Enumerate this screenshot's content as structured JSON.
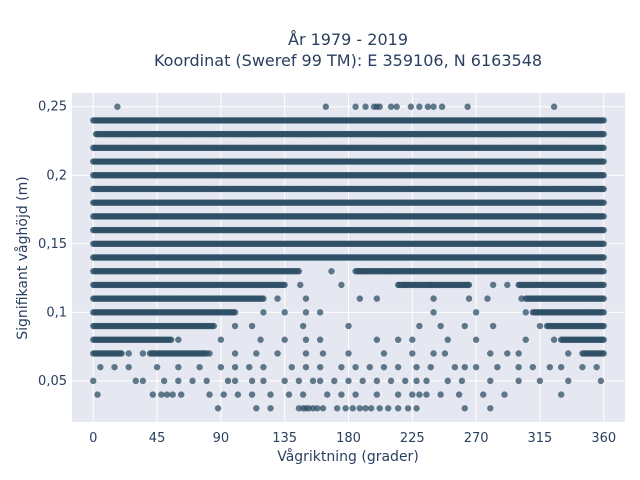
{
  "chart_data": {
    "type": "scatter",
    "title_lines": [
      "År 1979 - 2019",
      "Koordinat (Sweref 99 TM): E 359106, N 6163548"
    ],
    "xlabel": "Vågriktning (grader)",
    "ylabel": "Signifikant våghöjd (m)",
    "xlim": [
      -15,
      375
    ],
    "ylim": [
      0.02,
      0.26
    ],
    "xticks": [
      0,
      45,
      90,
      135,
      180,
      225,
      270,
      315,
      360
    ],
    "xtick_labels": [
      "0",
      "45",
      "90",
      "135",
      "180",
      "225",
      "270",
      "315",
      "360"
    ],
    "yticks": [
      0.05,
      0.1,
      0.15,
      0.2,
      0.25
    ],
    "ytick_labels": [
      "0,05",
      "0,1",
      "0,15",
      "0,2",
      "0,25"
    ],
    "grid": true,
    "marker_color": "#2f5067",
    "background_color": "#e5e8f0",
    "level_step": 0.01,
    "band_levels": [
      {
        "y": 0.24,
        "segments": [
          [
            0,
            360
          ]
        ]
      },
      {
        "y": 0.23,
        "segments": [
          [
            2,
            360
          ]
        ]
      },
      {
        "y": 0.22,
        "segments": [
          [
            0,
            360
          ]
        ]
      },
      {
        "y": 0.21,
        "segments": [
          [
            0,
            360
          ]
        ]
      },
      {
        "y": 0.2,
        "segments": [
          [
            0,
            360
          ]
        ]
      },
      {
        "y": 0.19,
        "segments": [
          [
            0,
            360
          ]
        ]
      },
      {
        "y": 0.18,
        "segments": [
          [
            0,
            360
          ]
        ]
      },
      {
        "y": 0.17,
        "segments": [
          [
            0,
            360
          ]
        ]
      },
      {
        "y": 0.16,
        "segments": [
          [
            0,
            360
          ]
        ]
      },
      {
        "y": 0.15,
        "segments": [
          [
            0,
            360
          ]
        ]
      },
      {
        "y": 0.14,
        "segments": [
          [
            0,
            360
          ]
        ]
      },
      {
        "y": 0.13,
        "segments": [
          [
            0,
            145
          ],
          [
            185,
            360
          ]
        ]
      },
      {
        "y": 0.12,
        "segments": [
          [
            0,
            135
          ],
          [
            215,
            265
          ],
          [
            300,
            360
          ]
        ]
      },
      {
        "y": 0.11,
        "segments": [
          [
            0,
            120
          ],
          [
            305,
            360
          ]
        ]
      },
      {
        "y": 0.1,
        "segments": [
          [
            0,
            100
          ],
          [
            310,
            360
          ]
        ]
      },
      {
        "y": 0.09,
        "segments": [
          [
            0,
            85
          ],
          [
            320,
            360
          ]
        ]
      },
      {
        "y": 0.08,
        "segments": [
          [
            0,
            55
          ],
          [
            330,
            360
          ]
        ]
      },
      {
        "y": 0.07,
        "segments": [
          [
            0,
            20
          ],
          [
            40,
            80
          ],
          [
            345,
            360
          ]
        ]
      }
    ],
    "scatter_points": [
      [
        17,
        0.25
      ],
      [
        164,
        0.25
      ],
      [
        185,
        0.25
      ],
      [
        192,
        0.25
      ],
      [
        198,
        0.25
      ],
      [
        200,
        0.25
      ],
      [
        202,
        0.25
      ],
      [
        210,
        0.25
      ],
      [
        214,
        0.25
      ],
      [
        224,
        0.25
      ],
      [
        230,
        0.25
      ],
      [
        236,
        0.25
      ],
      [
        240,
        0.25
      ],
      [
        246,
        0.25
      ],
      [
        264,
        0.25
      ],
      [
        325,
        0.25
      ],
      [
        168,
        0.13
      ],
      [
        188,
        0.13
      ],
      [
        210,
        0.13
      ],
      [
        146,
        0.12
      ],
      [
        175,
        0.12
      ],
      [
        220,
        0.12
      ],
      [
        238,
        0.12
      ],
      [
        264,
        0.12
      ],
      [
        282,
        0.12
      ],
      [
        292,
        0.12
      ],
      [
        130,
        0.11
      ],
      [
        150,
        0.11
      ],
      [
        188,
        0.11
      ],
      [
        200,
        0.11
      ],
      [
        240,
        0.11
      ],
      [
        265,
        0.11
      ],
      [
        278,
        0.11
      ],
      [
        302,
        0.11
      ],
      [
        120,
        0.1
      ],
      [
        135,
        0.1
      ],
      [
        150,
        0.1
      ],
      [
        160,
        0.1
      ],
      [
        240,
        0.1
      ],
      [
        270,
        0.1
      ],
      [
        305,
        0.1
      ],
      [
        100,
        0.09
      ],
      [
        112,
        0.09
      ],
      [
        148,
        0.09
      ],
      [
        180,
        0.09
      ],
      [
        230,
        0.09
      ],
      [
        245,
        0.09
      ],
      [
        262,
        0.09
      ],
      [
        282,
        0.09
      ],
      [
        315,
        0.09
      ],
      [
        60,
        0.08
      ],
      [
        90,
        0.08
      ],
      [
        118,
        0.08
      ],
      [
        135,
        0.08
      ],
      [
        150,
        0.08
      ],
      [
        160,
        0.08
      ],
      [
        200,
        0.08
      ],
      [
        215,
        0.08
      ],
      [
        225,
        0.08
      ],
      [
        250,
        0.08
      ],
      [
        270,
        0.08
      ],
      [
        305,
        0.08
      ],
      [
        325,
        0.08
      ],
      [
        25,
        0.07
      ],
      [
        35,
        0.07
      ],
      [
        82,
        0.07
      ],
      [
        100,
        0.07
      ],
      [
        115,
        0.07
      ],
      [
        130,
        0.07
      ],
      [
        150,
        0.07
      ],
      [
        162,
        0.07
      ],
      [
        180,
        0.07
      ],
      [
        205,
        0.07
      ],
      [
        225,
        0.07
      ],
      [
        240,
        0.07
      ],
      [
        248,
        0.07
      ],
      [
        280,
        0.07
      ],
      [
        292,
        0.07
      ],
      [
        300,
        0.07
      ],
      [
        335,
        0.07
      ],
      [
        5,
        0.06
      ],
      [
        15,
        0.06
      ],
      [
        25,
        0.06
      ],
      [
        45,
        0.06
      ],
      [
        60,
        0.06
      ],
      [
        75,
        0.06
      ],
      [
        90,
        0.06
      ],
      [
        100,
        0.06
      ],
      [
        110,
        0.06
      ],
      [
        120,
        0.06
      ],
      [
        140,
        0.06
      ],
      [
        150,
        0.06
      ],
      [
        160,
        0.06
      ],
      [
        175,
        0.06
      ],
      [
        185,
        0.06
      ],
      [
        195,
        0.06
      ],
      [
        205,
        0.06
      ],
      [
        215,
        0.06
      ],
      [
        228,
        0.06
      ],
      [
        238,
        0.06
      ],
      [
        255,
        0.06
      ],
      [
        262,
        0.06
      ],
      [
        270,
        0.06
      ],
      [
        285,
        0.06
      ],
      [
        300,
        0.06
      ],
      [
        310,
        0.06
      ],
      [
        322,
        0.06
      ],
      [
        330,
        0.06
      ],
      [
        345,
        0.06
      ],
      [
        355,
        0.06
      ],
      [
        0,
        0.05
      ],
      [
        30,
        0.05
      ],
      [
        35,
        0.05
      ],
      [
        50,
        0.05
      ],
      [
        60,
        0.05
      ],
      [
        70,
        0.05
      ],
      [
        80,
        0.05
      ],
      [
        95,
        0.05
      ],
      [
        100,
        0.05
      ],
      [
        112,
        0.05
      ],
      [
        120,
        0.05
      ],
      [
        135,
        0.05
      ],
      [
        145,
        0.05
      ],
      [
        155,
        0.05
      ],
      [
        160,
        0.05
      ],
      [
        170,
        0.05
      ],
      [
        180,
        0.05
      ],
      [
        190,
        0.05
      ],
      [
        200,
        0.05
      ],
      [
        210,
        0.05
      ],
      [
        220,
        0.05
      ],
      [
        228,
        0.05
      ],
      [
        235,
        0.05
      ],
      [
        250,
        0.05
      ],
      [
        260,
        0.05
      ],
      [
        280,
        0.05
      ],
      [
        300,
        0.05
      ],
      [
        315,
        0.05
      ],
      [
        335,
        0.05
      ],
      [
        358,
        0.05
      ],
      [
        3,
        0.04
      ],
      [
        42,
        0.04
      ],
      [
        48,
        0.04
      ],
      [
        52,
        0.04
      ],
      [
        56,
        0.04
      ],
      [
        62,
        0.04
      ],
      [
        82,
        0.04
      ],
      [
        92,
        0.04
      ],
      [
        102,
        0.04
      ],
      [
        112,
        0.04
      ],
      [
        125,
        0.04
      ],
      [
        138,
        0.04
      ],
      [
        148,
        0.04
      ],
      [
        165,
        0.04
      ],
      [
        175,
        0.04
      ],
      [
        185,
        0.04
      ],
      [
        200,
        0.04
      ],
      [
        215,
        0.04
      ],
      [
        225,
        0.04
      ],
      [
        230,
        0.04
      ],
      [
        235,
        0.04
      ],
      [
        245,
        0.04
      ],
      [
        258,
        0.04
      ],
      [
        275,
        0.04
      ],
      [
        290,
        0.04
      ],
      [
        330,
        0.04
      ],
      [
        88,
        0.03
      ],
      [
        115,
        0.03
      ],
      [
        125,
        0.03
      ],
      [
        145,
        0.03
      ],
      [
        148,
        0.03
      ],
      [
        150,
        0.03
      ],
      [
        152,
        0.03
      ],
      [
        155,
        0.03
      ],
      [
        158,
        0.03
      ],
      [
        162,
        0.03
      ],
      [
        172,
        0.03
      ],
      [
        178,
        0.03
      ],
      [
        183,
        0.03
      ],
      [
        188,
        0.03
      ],
      [
        192,
        0.03
      ],
      [
        196,
        0.03
      ],
      [
        202,
        0.03
      ],
      [
        208,
        0.03
      ],
      [
        215,
        0.03
      ],
      [
        222,
        0.03
      ],
      [
        228,
        0.03
      ],
      [
        262,
        0.03
      ],
      [
        280,
        0.03
      ]
    ]
  }
}
